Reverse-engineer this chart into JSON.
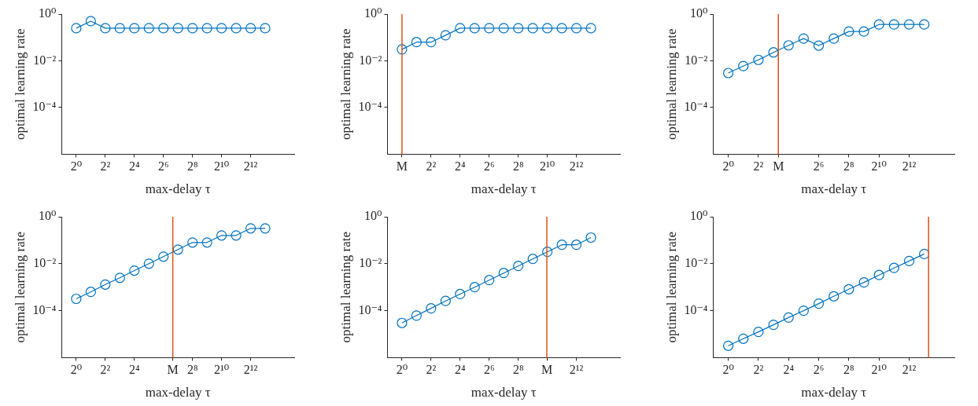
{
  "chart_data": [
    {
      "type": "line",
      "xlabel": "max-delay τ",
      "ylabel": "optimal learning rate",
      "log": "xy",
      "marker": "circle",
      "color": "#0072bd",
      "xlim": [
        0.5,
        32768
      ],
      "ylim": [
        1e-06,
        1
      ],
      "xticks": [
        {
          "value": 1,
          "label": "2⁰"
        },
        {
          "value": 4,
          "label": "2²"
        },
        {
          "value": 16,
          "label": "2⁴"
        },
        {
          "value": 64,
          "label": "2⁶"
        },
        {
          "value": 256,
          "label": "2⁸"
        },
        {
          "value": 1024,
          "label": "2¹⁰"
        },
        {
          "value": 4096,
          "label": "2¹²"
        }
      ],
      "yticks": [
        {
          "value": 1,
          "label": "10⁰"
        },
        {
          "value": 0.01,
          "label": "10⁻²"
        },
        {
          "value": 0.0001,
          "label": "10⁻⁴"
        }
      ],
      "x": [
        1,
        2,
        4,
        8,
        16,
        32,
        64,
        128,
        256,
        512,
        1024,
        2048,
        4096,
        8192
      ],
      "values": [
        0.25,
        0.5,
        0.25,
        0.25,
        0.25,
        0.25,
        0.25,
        0.25,
        0.25,
        0.25,
        0.25,
        0.25,
        0.25,
        0.25
      ]
    },
    {
      "type": "line",
      "xlabel": "max-delay τ",
      "ylabel": "optimal learning rate",
      "log": "xy",
      "marker": "circle",
      "color": "#0072bd",
      "xlim": [
        0.5,
        32768
      ],
      "ylim": [
        1e-06,
        1
      ],
      "xticks": [
        {
          "value": 1,
          "label": "M"
        },
        {
          "value": 4,
          "label": "2²"
        },
        {
          "value": 16,
          "label": "2⁴"
        },
        {
          "value": 64,
          "label": "2⁶"
        },
        {
          "value": 256,
          "label": "2⁸"
        },
        {
          "value": 1024,
          "label": "2¹⁰"
        },
        {
          "value": 4096,
          "label": "2¹²"
        }
      ],
      "yticks": [
        {
          "value": 1,
          "label": "10⁰"
        },
        {
          "value": 0.01,
          "label": "10⁻²"
        },
        {
          "value": 0.0001,
          "label": "10⁻⁴"
        }
      ],
      "x": [
        1,
        2,
        4,
        8,
        16,
        32,
        64,
        128,
        256,
        512,
        1024,
        2048,
        4096,
        8192
      ],
      "values": [
        0.031,
        0.063,
        0.063,
        0.125,
        0.25,
        0.25,
        0.25,
        0.25,
        0.25,
        0.25,
        0.25,
        0.25,
        0.25,
        0.25
      ],
      "ref_lines": [
        {
          "axis": "x",
          "value": 1,
          "color": "#d95319"
        }
      ]
    },
    {
      "type": "line",
      "xlabel": "max-delay τ",
      "ylabel": "optimal learning rate",
      "log": "xy",
      "marker": "circle",
      "color": "#0072bd",
      "xlim": [
        0.5,
        32768
      ],
      "ylim": [
        1e-06,
        1
      ],
      "xticks": [
        {
          "value": 1,
          "label": "2⁰"
        },
        {
          "value": 4,
          "label": "2²"
        },
        {
          "value": 10,
          "label": "M"
        },
        {
          "value": 64,
          "label": "2⁶"
        },
        {
          "value": 256,
          "label": "2⁸"
        },
        {
          "value": 1024,
          "label": "2¹⁰"
        },
        {
          "value": 4096,
          "label": "2¹²"
        }
      ],
      "yticks": [
        {
          "value": 1,
          "label": "10⁰"
        },
        {
          "value": 0.01,
          "label": "10⁻²"
        },
        {
          "value": 0.0001,
          "label": "10⁻⁴"
        }
      ],
      "x": [
        1,
        2,
        4,
        8,
        16,
        32,
        64,
        128,
        256,
        512,
        1024,
        2048,
        4096,
        8192
      ],
      "values": [
        0.003,
        0.006,
        0.011,
        0.023,
        0.046,
        0.09,
        0.045,
        0.09,
        0.18,
        0.18,
        0.36,
        0.36,
        0.36,
        0.36
      ],
      "ref_lines": [
        {
          "axis": "x",
          "value": 10,
          "color": "#d95319"
        }
      ]
    },
    {
      "type": "line",
      "xlabel": "max-delay τ",
      "ylabel": "optimal learning rate",
      "log": "xy",
      "marker": "circle",
      "color": "#0072bd",
      "xlim": [
        0.5,
        32768
      ],
      "ylim": [
        1e-06,
        1
      ],
      "xticks": [
        {
          "value": 1,
          "label": "2⁰"
        },
        {
          "value": 4,
          "label": "2²"
        },
        {
          "value": 16,
          "label": "2⁴"
        },
        {
          "value": 100,
          "label": "M"
        },
        {
          "value": 256,
          "label": "2⁸"
        },
        {
          "value": 1024,
          "label": "2¹⁰"
        },
        {
          "value": 4096,
          "label": "2¹²"
        }
      ],
      "yticks": [
        {
          "value": 1,
          "label": "10⁰"
        },
        {
          "value": 0.01,
          "label": "10⁻²"
        },
        {
          "value": 0.0001,
          "label": "10⁻⁴"
        }
      ],
      "x": [
        1,
        2,
        4,
        8,
        16,
        32,
        64,
        128,
        256,
        512,
        1024,
        2048,
        4096,
        8192
      ],
      "values": [
        0.00032,
        0.00063,
        0.0013,
        0.0025,
        0.0051,
        0.01,
        0.02,
        0.04,
        0.08,
        0.08,
        0.16,
        0.16,
        0.32,
        0.32
      ],
      "ref_lines": [
        {
          "axis": "x",
          "value": 100,
          "color": "#d95319"
        }
      ]
    },
    {
      "type": "line",
      "xlabel": "max-delay τ",
      "ylabel": "optimal learning rate",
      "log": "xy",
      "marker": "circle",
      "color": "#0072bd",
      "xlim": [
        0.5,
        32768
      ],
      "ylim": [
        1e-06,
        1
      ],
      "xticks": [
        {
          "value": 1,
          "label": "2⁰"
        },
        {
          "value": 4,
          "label": "2²"
        },
        {
          "value": 16,
          "label": "2⁴"
        },
        {
          "value": 64,
          "label": "2⁶"
        },
        {
          "value": 256,
          "label": "2⁸"
        },
        {
          "value": 1000,
          "label": "M"
        },
        {
          "value": 4096,
          "label": "2¹²"
        }
      ],
      "yticks": [
        {
          "value": 1,
          "label": "10⁰"
        },
        {
          "value": 0.01,
          "label": "10⁻²"
        },
        {
          "value": 0.0001,
          "label": "10⁻⁴"
        }
      ],
      "x": [
        1,
        2,
        4,
        8,
        16,
        32,
        64,
        128,
        256,
        512,
        1024,
        2048,
        4096,
        8192
      ],
      "values": [
        3e-05,
        6.2e-05,
        0.000126,
        0.00026,
        0.00051,
        0.001,
        0.002,
        0.004,
        0.008,
        0.016,
        0.032,
        0.064,
        0.064,
        0.13
      ],
      "ref_lines": [
        {
          "axis": "x",
          "value": 1000,
          "color": "#d95319"
        }
      ]
    },
    {
      "type": "line",
      "xlabel": "max-delay τ",
      "ylabel": "optimal learning rate",
      "log": "xy",
      "marker": "circle",
      "color": "#0072bd",
      "xlim": [
        0.5,
        32768
      ],
      "ylim": [
        1e-06,
        1
      ],
      "xticks": [
        {
          "value": 1,
          "label": "2⁰"
        },
        {
          "value": 4,
          "label": "2²"
        },
        {
          "value": 16,
          "label": "2⁴"
        },
        {
          "value": 64,
          "label": "2⁶"
        },
        {
          "value": 256,
          "label": "2⁸"
        },
        {
          "value": 1024,
          "label": "2¹⁰"
        },
        {
          "value": 4096,
          "label": "2¹²"
        }
      ],
      "yticks": [
        {
          "value": 1,
          "label": "10⁰"
        },
        {
          "value": 0.01,
          "label": "10⁻²"
        },
        {
          "value": 0.0001,
          "label": "10⁻⁴"
        }
      ],
      "x": [
        1,
        2,
        4,
        8,
        16,
        32,
        64,
        128,
        256,
        512,
        1024,
        2048,
        4096,
        8192
      ],
      "values": [
        3.2e-06,
        6.4e-06,
        1.25e-05,
        2.5e-05,
        5.1e-05,
        0.0001,
        0.0002,
        0.00041,
        0.00082,
        0.0016,
        0.0033,
        0.0066,
        0.013,
        0.026
      ],
      "ref_lines": [
        {
          "axis": "x",
          "value": 10000,
          "color": "#d95319"
        }
      ]
    }
  ]
}
